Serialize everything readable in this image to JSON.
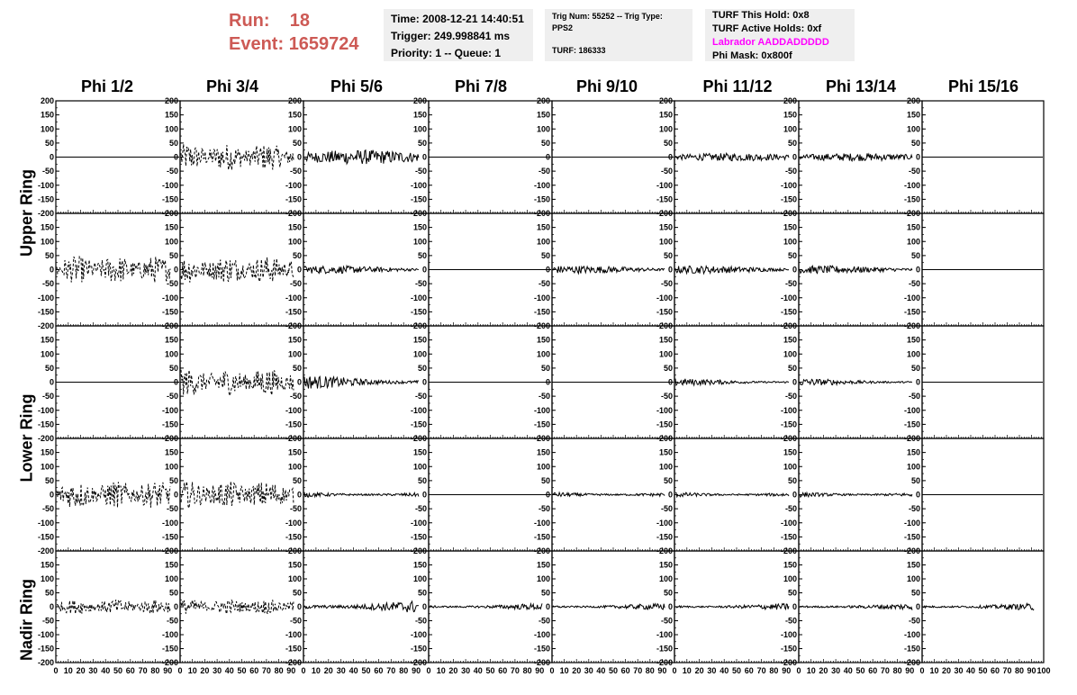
{
  "header": {
    "run_label": "Run:",
    "run_value": "18",
    "event_label": "Event:",
    "event_value": "1659724"
  },
  "info_box1": {
    "time": "Time: 2008-12-21 14:40:51",
    "trigger": "Trigger: 249.998841 ms",
    "priority": "Priority: 1 -- Queue: 1"
  },
  "info_box2": {
    "trig": "Trig Num: 55252 -- Trig Type: PPS2",
    "turf": "TURF: 186333"
  },
  "info_box3": {
    "hold": "TURF This Hold: 0x8",
    "active": "TURF Active Holds: 0xf",
    "labrador": "Labrador AADDADDDDD",
    "phimask": "Phi Mask: 0x800f",
    "labrador_color": "#ff00ff"
  },
  "columns": [
    "Phi 1/2",
    "Phi 3/4",
    "Phi 5/6",
    "Phi 7/8",
    "Phi 9/10",
    "Phi 11/12",
    "Phi 13/14",
    "Phi 15/16"
  ],
  "rings": [
    "Upper Ring",
    "Lower Ring",
    "Nadir Ring"
  ],
  "y_axis": {
    "min": -200,
    "max": 200,
    "ticks": [
      200,
      150,
      100,
      50,
      0,
      -50,
      -100,
      -150,
      -200
    ]
  },
  "x_axis": {
    "min": 0,
    "max": 100,
    "ticks": [
      0,
      10,
      20,
      30,
      40,
      50,
      60,
      70,
      80,
      90,
      100
    ]
  },
  "panels": [
    [
      "flat",
      "dashed-large",
      "solid-medium",
      "flat",
      "flat",
      "solid-small",
      "solid-small",
      "flat"
    ],
    [
      "dashed-large",
      "dashed-large",
      "solid-small",
      "flat",
      "solid-small",
      "solid-small",
      "solid-small",
      "flat"
    ],
    [
      "flat",
      "dashed-large",
      "solid-medium",
      "flat",
      "flat",
      "solid-small",
      "solid-small",
      "flat"
    ],
    [
      "dashed-large",
      "dashed-large",
      "solid-small",
      "flat",
      "solid-small",
      "solid-small",
      "solid-small",
      "flat"
    ],
    [
      "dashed-medium",
      "dashed-medium",
      "solid-medium",
      "solid-small",
      "solid-small",
      "solid-small",
      "solid-small",
      "solid-small"
    ]
  ]
}
